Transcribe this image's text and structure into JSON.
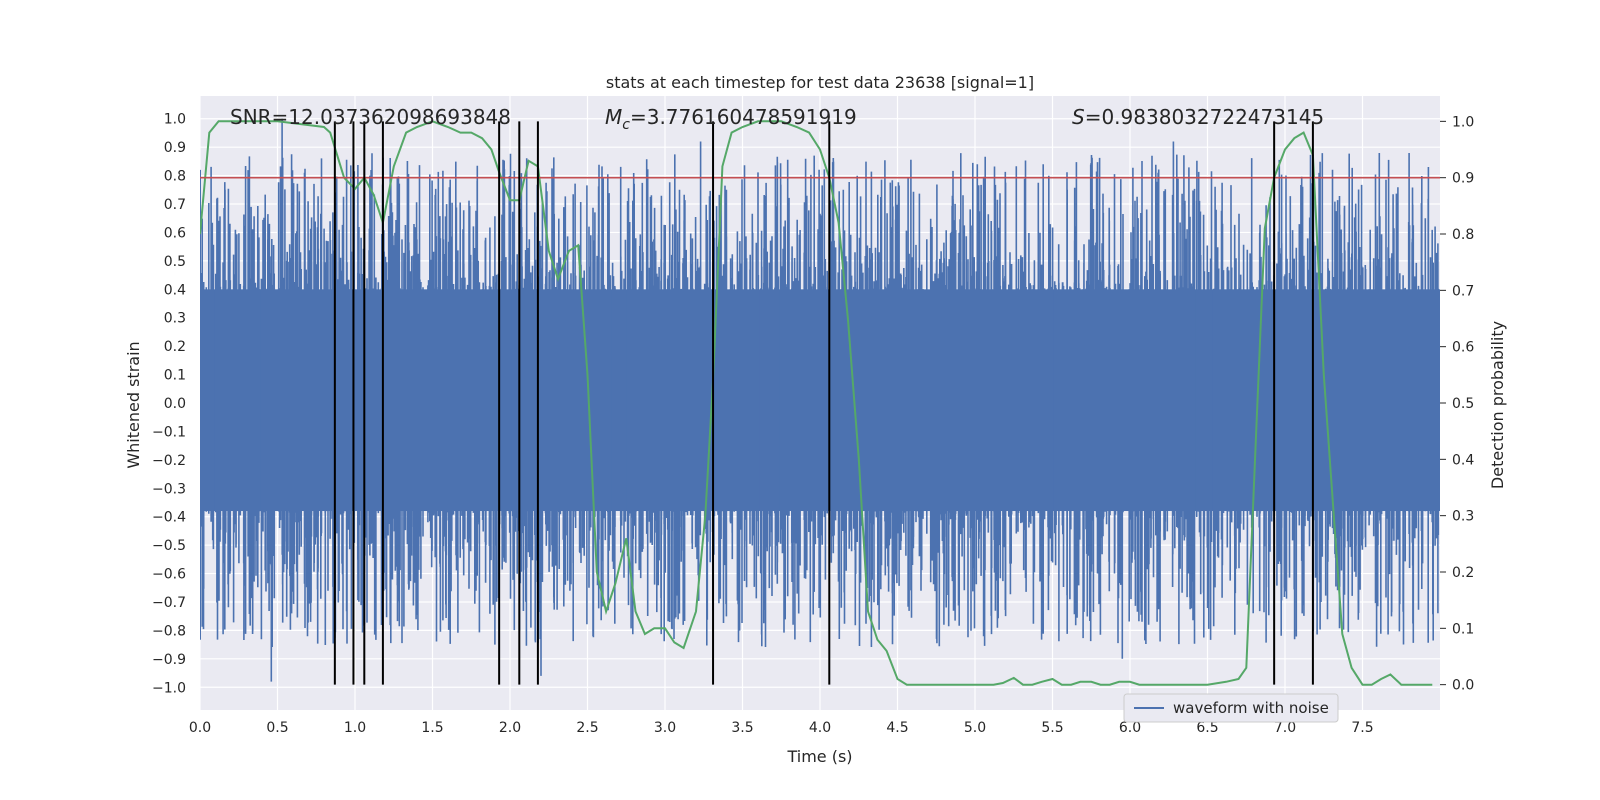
{
  "chart_data": {
    "type": "line",
    "title": "stats at each timestep for test data 23638 [signal=1]",
    "xlabel": "Time (s)",
    "ylabel": "Whitened strain",
    "y2label": "Detection probability",
    "xlim": [
      0.0,
      8.0
    ],
    "ylim": [
      -1.08,
      1.08
    ],
    "y2lim": [
      -0.045,
      1.045
    ],
    "x_ticks": [
      0.0,
      0.5,
      1.0,
      1.5,
      2.0,
      2.5,
      3.0,
      3.5,
      4.0,
      4.5,
      5.0,
      5.5,
      6.0,
      6.5,
      7.0,
      7.5
    ],
    "x_tick_labels": [
      "0.0",
      "0.5",
      "1.0",
      "1.5",
      "2.0",
      "2.5",
      "3.0",
      "3.5",
      "4.0",
      "4.5",
      "5.0",
      "5.5",
      "6.0",
      "6.5",
      "7.0",
      "7.5"
    ],
    "y_ticks": [
      1.0,
      0.9,
      0.8,
      0.7,
      0.6,
      0.5,
      0.4,
      0.3,
      0.2,
      0.1,
      0.0,
      -0.1,
      -0.2,
      -0.3,
      -0.4,
      -0.5,
      -0.6,
      -0.7,
      -0.8,
      -0.9,
      -1.0
    ],
    "y_tick_labels": [
      "1.0",
      "0.9",
      "0.8",
      "0.7",
      "0.6",
      "0.5",
      "0.4",
      "0.3",
      "0.2",
      "0.1",
      "0.0",
      "−0.1",
      "−0.2",
      "−0.3",
      "−0.4",
      "−0.5",
      "−0.6",
      "−0.7",
      "−0.8",
      "−0.9",
      "−1.0"
    ],
    "y2_ticks": [
      1.0,
      0.9,
      0.8,
      0.7,
      0.6,
      0.5,
      0.4,
      0.3,
      0.2,
      0.1,
      0.0
    ],
    "y2_tick_labels": [
      "1.0",
      "0.9",
      "0.8",
      "0.7",
      "0.6",
      "0.5",
      "0.4",
      "0.3",
      "0.2",
      "0.1",
      "0.0"
    ],
    "grid": true,
    "legend": {
      "entries": [
        "waveform with noise"
      ],
      "placement": "lower-right"
    },
    "annotations": {
      "snr": "SNR=12.037362098693848",
      "mc_symbol": "M",
      "mc_sub": "c",
      "mc_value": "=3.776160478591919",
      "s_symbol": "S",
      "s_value": "=0.9838032722473145"
    },
    "threshold": {
      "value": 0.9,
      "axis": "y2",
      "color": "#c44e52"
    },
    "vertical_markers": [
      0.87,
      0.99,
      1.06,
      1.18,
      1.93,
      2.06,
      2.18,
      3.31,
      4.06,
      6.93,
      7.18
    ],
    "waveform": {
      "name": "waveform with noise",
      "color": "#4c72b0",
      "band": [
        -0.38,
        0.4
      ],
      "spike_rate_per_s": 180,
      "spike_max_up": 1.0,
      "spike_max_down": -0.98
    },
    "detection_probability": {
      "name": "Detection probability",
      "color": "#55a868",
      "x": [
        0.0,
        0.06,
        0.12,
        0.5,
        0.8,
        0.84,
        0.93,
        1.0,
        1.06,
        1.12,
        1.18,
        1.25,
        1.33,
        1.4,
        1.5,
        1.6,
        1.68,
        1.75,
        1.82,
        1.88,
        1.93,
        2.0,
        2.06,
        2.12,
        2.18,
        2.25,
        2.31,
        2.38,
        2.44,
        2.5,
        2.56,
        2.62,
        2.68,
        2.75,
        2.81,
        2.87,
        2.93,
        3.0,
        3.06,
        3.12,
        3.2,
        3.26,
        3.31,
        3.37,
        3.43,
        3.5,
        3.6,
        3.75,
        3.85,
        3.93,
        4.0,
        4.06,
        4.12,
        4.18,
        4.25,
        4.31,
        4.37,
        4.43,
        4.5,
        4.56,
        4.62,
        4.75,
        4.87,
        5.0,
        5.12,
        5.18,
        5.25,
        5.31,
        5.37,
        5.43,
        5.5,
        5.56,
        5.62,
        5.68,
        5.75,
        5.81,
        5.87,
        5.93,
        6.0,
        6.06,
        6.12,
        6.18,
        6.25,
        6.5,
        6.62,
        6.7,
        6.75,
        6.81,
        6.87,
        6.93,
        7.0,
        7.06,
        7.12,
        7.18,
        7.25,
        7.31,
        7.37,
        7.43,
        7.5,
        7.56,
        7.62,
        7.68,
        7.75,
        7.81,
        7.95
      ],
      "values": [
        0.8,
        0.98,
        1.0,
        1.0,
        0.99,
        0.98,
        0.9,
        0.88,
        0.9,
        0.87,
        0.82,
        0.92,
        0.98,
        0.99,
        1.0,
        0.99,
        0.98,
        0.98,
        0.97,
        0.95,
        0.91,
        0.86,
        0.86,
        0.93,
        0.92,
        0.77,
        0.72,
        0.77,
        0.78,
        0.55,
        0.2,
        0.13,
        0.18,
        0.26,
        0.13,
        0.09,
        0.1,
        0.1,
        0.075,
        0.065,
        0.13,
        0.3,
        0.54,
        0.92,
        0.98,
        0.99,
        1.0,
        1.0,
        0.99,
        0.98,
        0.95,
        0.9,
        0.82,
        0.65,
        0.4,
        0.13,
        0.08,
        0.06,
        0.01,
        0.0,
        0.0,
        0.0,
        0.0,
        0.0,
        0.0,
        0.003,
        0.012,
        0.0,
        0.0,
        0.005,
        0.01,
        0.0,
        0.0,
        0.005,
        0.005,
        0.0,
        0.0,
        0.005,
        0.005,
        0.0,
        0.0,
        0.0,
        0.0,
        0.0,
        0.005,
        0.01,
        0.03,
        0.42,
        0.81,
        0.9,
        0.95,
        0.97,
        0.98,
        0.94,
        0.55,
        0.32,
        0.09,
        0.03,
        0.0,
        0.0,
        0.01,
        0.018,
        0.0,
        0.0,
        0.0
      ]
    }
  }
}
